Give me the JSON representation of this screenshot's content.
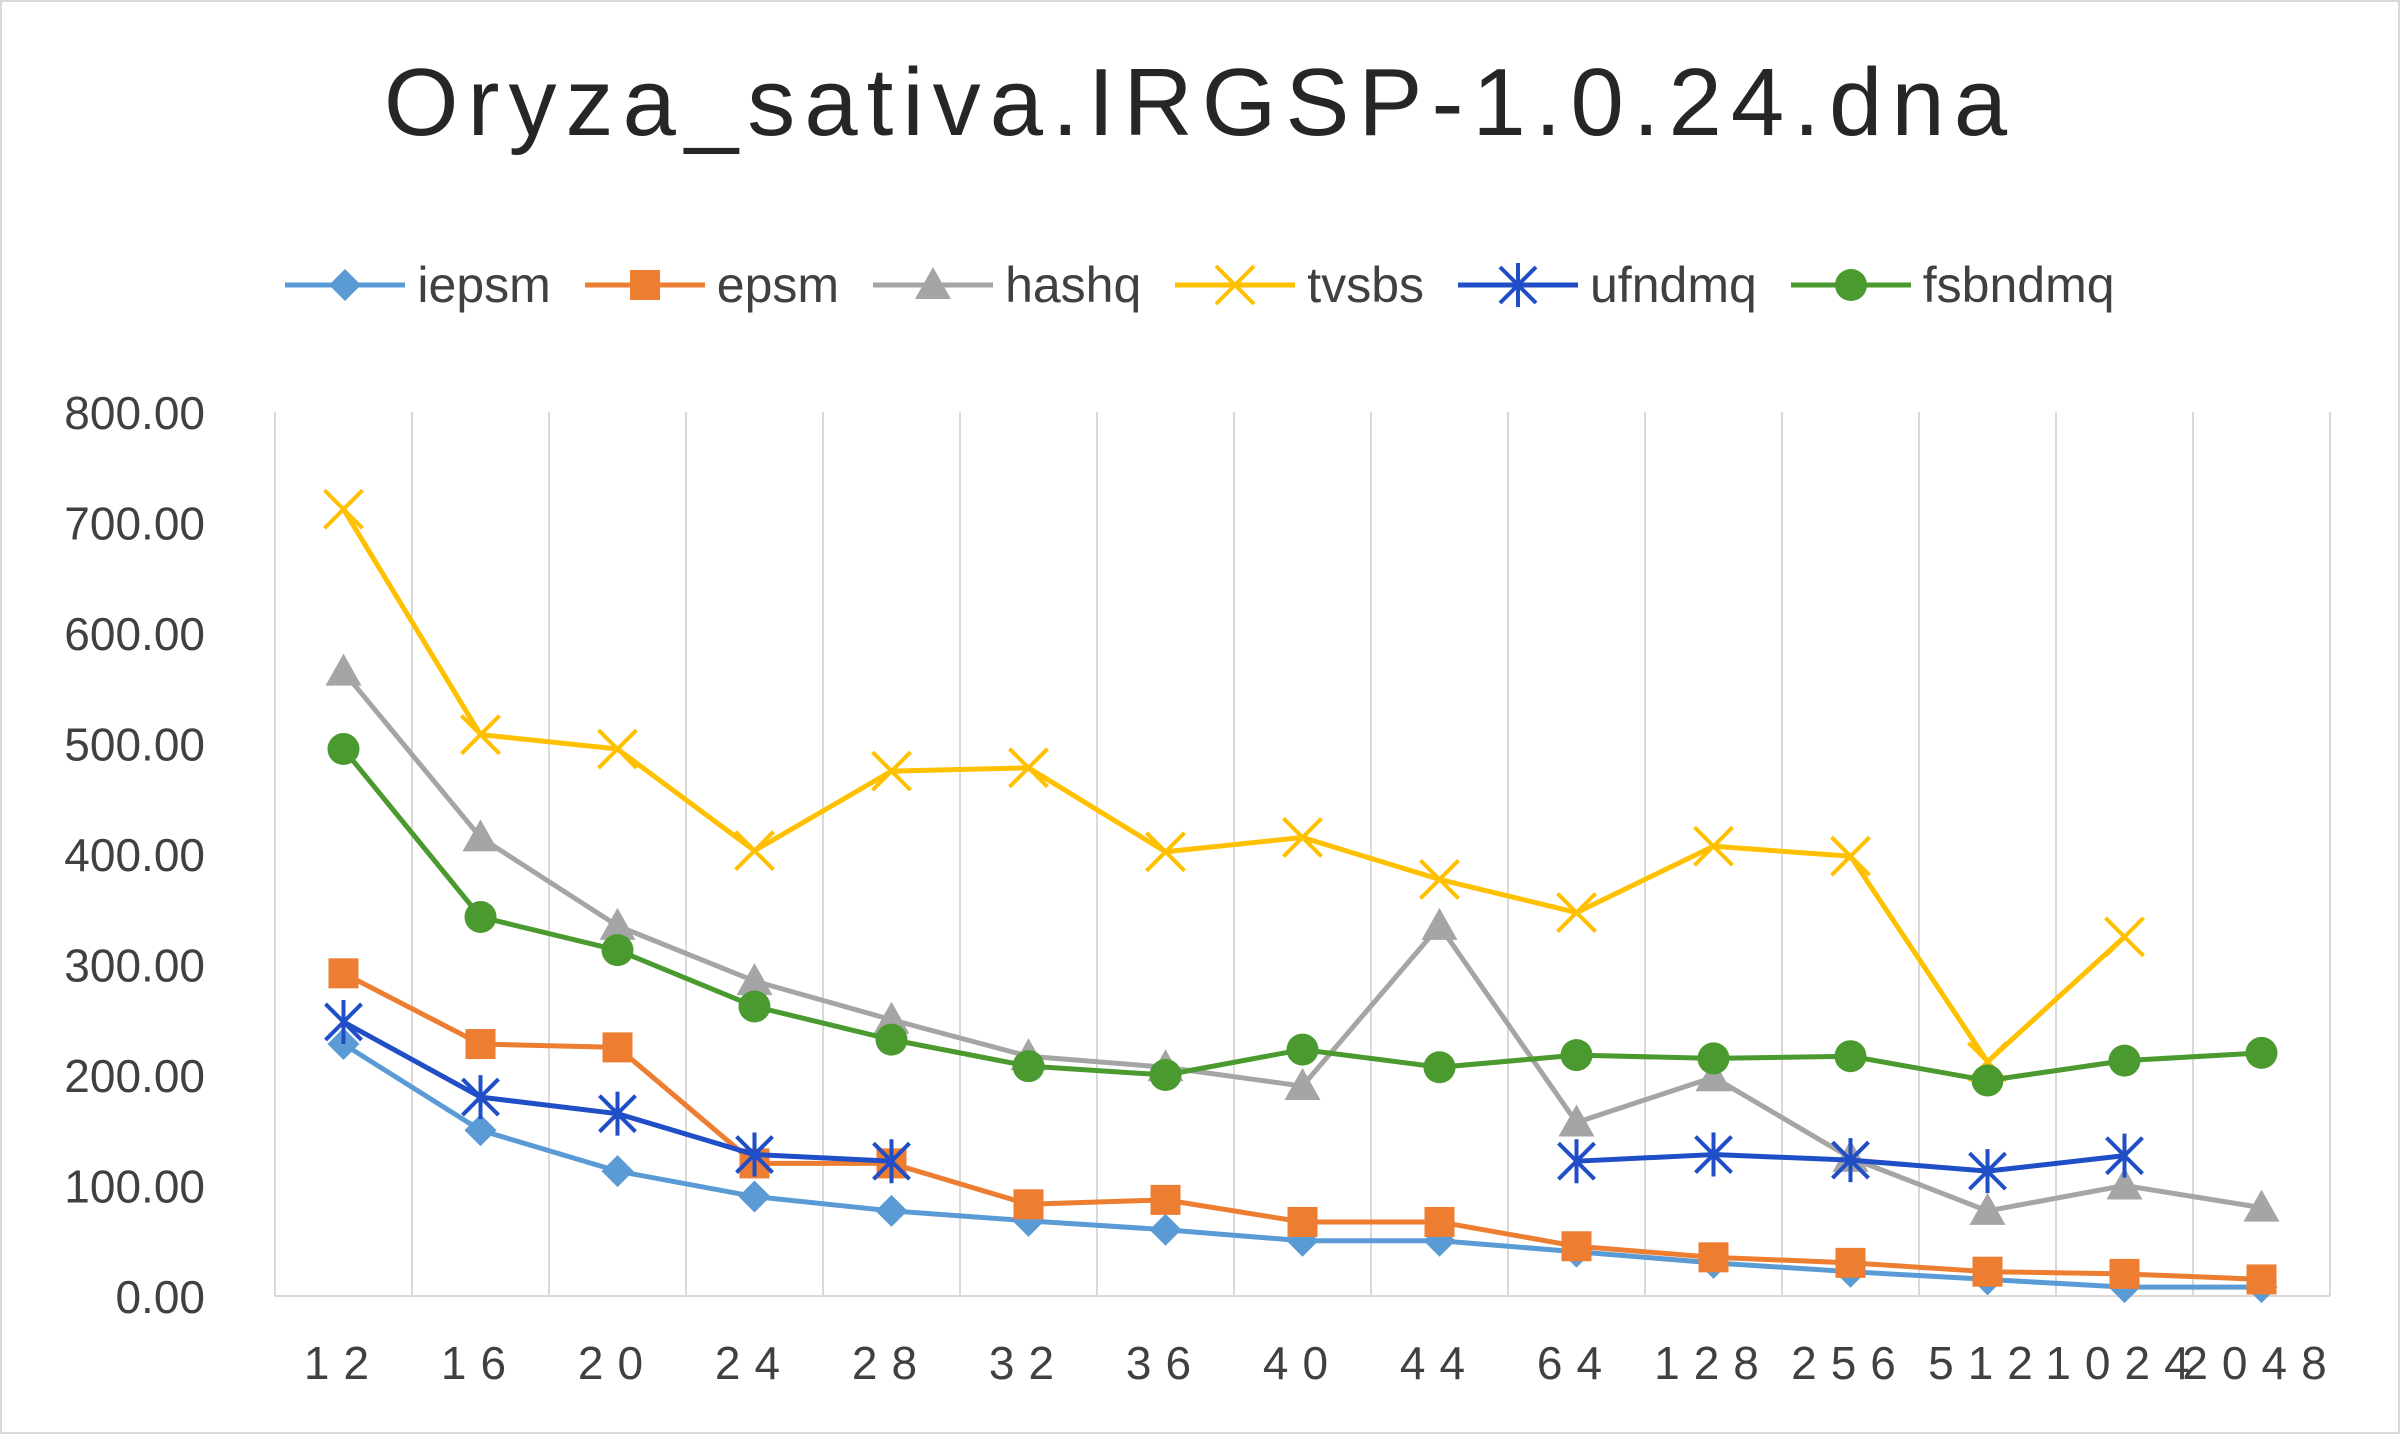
{
  "chart_data": {
    "type": "line",
    "title": "Oryza_sativa.IRGSP-1.0.24.dna",
    "categories": [
      "12",
      "16",
      "20",
      "24",
      "28",
      "32",
      "36",
      "40",
      "44",
      "64",
      "128",
      "256",
      "512",
      "1024",
      "2048"
    ],
    "y_tick_labels": [
      "0.00",
      "100.00",
      "200.00",
      "300.00",
      "400.00",
      "500.00",
      "600.00",
      "700.00",
      "800.00"
    ],
    "ylim": [
      0,
      800
    ],
    "grid": "vertical",
    "legend_position": "top",
    "series": [
      {
        "name": "iepsm",
        "color": "#5b9bd5",
        "marker": "diamond",
        "values": [
          228,
          150,
          113,
          90,
          77,
          68,
          60,
          50,
          50,
          40,
          30,
          22,
          15,
          8,
          8
        ]
      },
      {
        "name": "epsm",
        "color": "#ed7d31",
        "marker": "square",
        "values": [
          292,
          228,
          225,
          120,
          120,
          83,
          87,
          67,
          67,
          45,
          35,
          30,
          22,
          20,
          15
        ]
      },
      {
        "name": "hashq",
        "color": "#a5a5a5",
        "marker": "triangle",
        "values": [
          565,
          415,
          335,
          285,
          250,
          217,
          207,
          190,
          335,
          157,
          198,
          125,
          77,
          100,
          80
        ]
      },
      {
        "name": "tvsbs",
        "color": "#ffc000",
        "marker": "x",
        "values": [
          712,
          508,
          495,
          403,
          475,
          478,
          402,
          415,
          377,
          347,
          407,
          398,
          212,
          325,
          null
        ]
      },
      {
        "name": "ufndmq",
        "color": "#1f4ec6",
        "marker": "star",
        "values": [
          248,
          180,
          165,
          128,
          122,
          null,
          null,
          null,
          null,
          122,
          128,
          123,
          113,
          127,
          null
        ]
      },
      {
        "name": "fsbndmq",
        "color": "#4a9a2f",
        "marker": "circle",
        "values": [
          495,
          343,
          313,
          262,
          232,
          208,
          200,
          223,
          207,
          218,
          215,
          217,
          195,
          213,
          220
        ]
      }
    ]
  }
}
